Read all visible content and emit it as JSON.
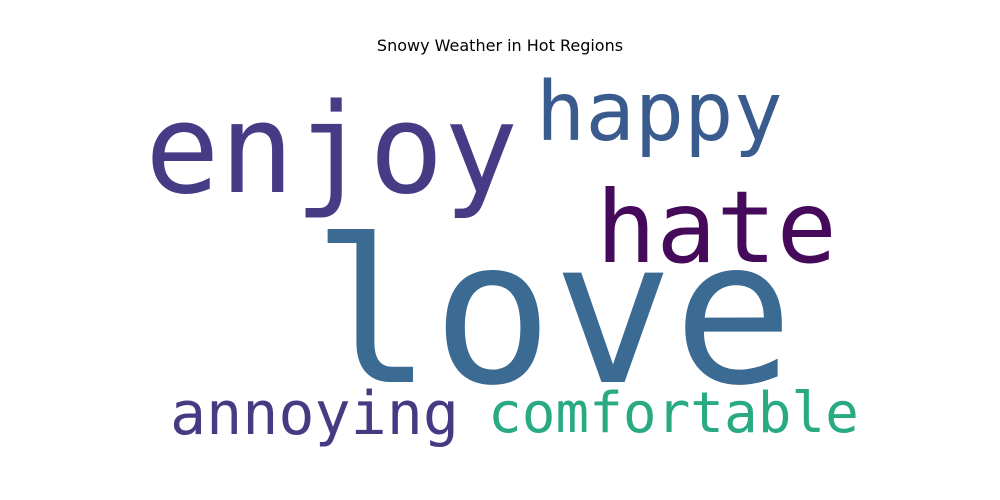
{
  "chart_data": {
    "type": "wordcloud",
    "title": "Snowy Weather in Hot Regions",
    "words": [
      {
        "text": "love",
        "color": "#3b6a93"
      },
      {
        "text": "enjoy",
        "color": "#463c86"
      },
      {
        "text": "happy",
        "color": "#3a5b8d"
      },
      {
        "text": "hate",
        "color": "#450a5a"
      },
      {
        "text": "annoying",
        "color": "#443b83"
      },
      {
        "text": "comfortable",
        "color": "#2aaa83"
      }
    ]
  }
}
